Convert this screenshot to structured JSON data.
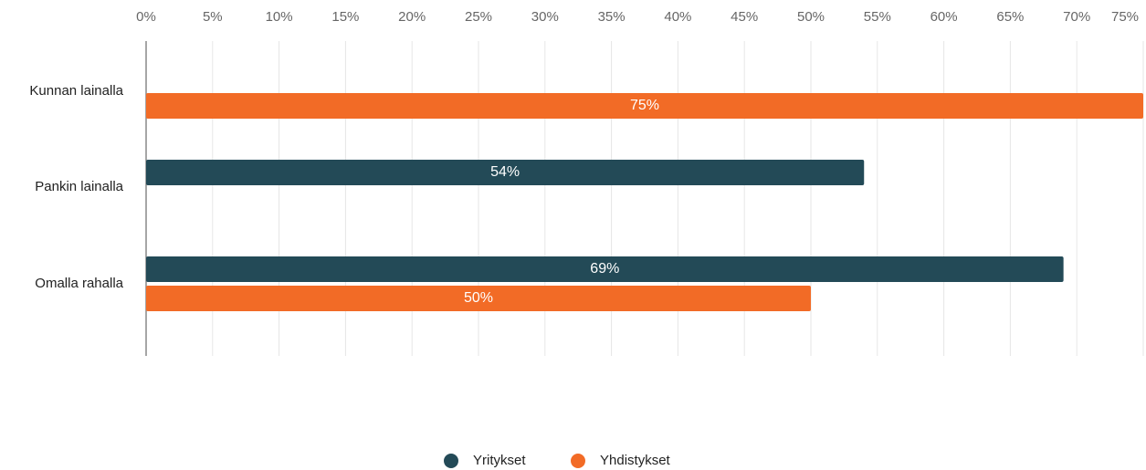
{
  "chart_data": {
    "type": "hbar",
    "categories": [
      "Kunnan lainalla",
      "Pankin lainalla",
      "Omalla rahalla"
    ],
    "series": [
      {
        "name": "Yritykset",
        "color": "#234a57",
        "values": [
          null,
          54,
          69
        ],
        "value_labels": [
          null,
          "54%",
          "69%"
        ]
      },
      {
        "name": "Yhdistykset",
        "color": "#f26b26",
        "values": [
          75,
          null,
          50
        ],
        "value_labels": [
          "75%",
          null,
          "50%"
        ]
      }
    ],
    "xlim": [
      0,
      75
    ],
    "xticks": [
      {
        "value": 0,
        "label": "0%"
      },
      {
        "value": 5,
        "label": "5%"
      },
      {
        "value": 10,
        "label": "10%"
      },
      {
        "value": 15,
        "label": "15%"
      },
      {
        "value": 20,
        "label": "20%"
      },
      {
        "value": 25,
        "label": "25%"
      },
      {
        "value": 30,
        "label": "30%"
      },
      {
        "value": 35,
        "label": "35%"
      },
      {
        "value": 40,
        "label": "40%"
      },
      {
        "value": 45,
        "label": "45%"
      },
      {
        "value": 50,
        "label": "50%"
      },
      {
        "value": 55,
        "label": "55%"
      },
      {
        "value": 60,
        "label": "60%"
      },
      {
        "value": 65,
        "label": "65%"
      },
      {
        "value": 70,
        "label": "70%"
      },
      {
        "value": 75,
        "label": "75%"
      }
    ],
    "grid": true,
    "legend": "bottom"
  }
}
